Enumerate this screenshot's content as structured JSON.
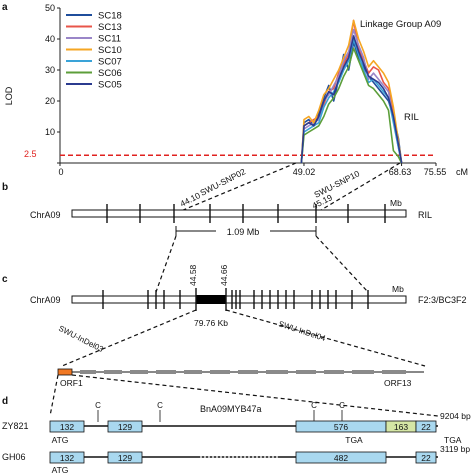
{
  "panels": {
    "a": {
      "letter": "a"
    },
    "b": {
      "letter": "b"
    },
    "c": {
      "letter": "c"
    },
    "d": {
      "letter": "d"
    }
  },
  "panel_a": {
    "group_label": "Linkage Group A09",
    "population_label": "RIL",
    "ylabel": "LOD",
    "threshold_label": "2.5",
    "x_unit": "cM",
    "x_ticks": [
      "0",
      "49.02",
      "68.63",
      "75.55"
    ]
  },
  "panel_b": {
    "chrom": "ChrA09",
    "unit": "Mb",
    "population": "RIL",
    "markers": [
      {
        "name": "SWU-SNP02",
        "pos": "44.10"
      },
      {
        "name": "SWU-SNP10",
        "pos": "45.19"
      }
    ],
    "interval": "1.09 Mb"
  },
  "panel_c": {
    "chrom": "ChrA09",
    "unit": "Mb",
    "population": "F2:3/BC3F2",
    "pos_left": "44.58",
    "pos_right": "44.66",
    "interval": "79.76 Kb",
    "markers": [
      "SWU-InDel03",
      "SWU-InDel04"
    ],
    "orf_first": "ORF1",
    "orf_last": "ORF13"
  },
  "panel_d": {
    "gene": "BnA09MYB47a",
    "c_mark": "C",
    "rows": [
      {
        "name": "ZY821",
        "length": "9204 bp",
        "exons": [
          "132",
          "129",
          "576",
          "163",
          "22"
        ],
        "start_codon": "ATG",
        "stop_codons": [
          "TGA",
          "TGA"
        ]
      },
      {
        "name": "GH06",
        "length": "3119 bp",
        "exons": [
          "132",
          "129",
          "482",
          "22"
        ],
        "start_codon": "ATG"
      }
    ]
  },
  "chart_data": {
    "type": "line",
    "title": "Linkage Group A09",
    "xlabel": "cM",
    "ylabel": "LOD",
    "xlim": [
      0,
      75.55
    ],
    "ylim": [
      0,
      50
    ],
    "yticks": [
      0,
      10,
      20,
      30,
      40,
      50
    ],
    "threshold": 2.5,
    "legend_position": "top-left",
    "x": [
      48.5,
      49.02,
      50,
      51,
      52,
      53,
      54,
      55,
      56,
      57,
      58,
      59,
      60,
      61,
      62,
      63,
      64,
      65,
      66,
      67,
      68,
      68.63
    ],
    "series": [
      {
        "name": "SC18",
        "color": "#1f4e9c",
        "values": [
          0,
          13,
          14,
          12,
          16,
          21,
          25,
          20,
          27,
          35,
          30,
          39,
          34,
          31,
          28,
          26,
          24,
          22,
          20,
          15,
          8,
          0
        ]
      },
      {
        "name": "SC13",
        "color": "#e8554a",
        "values": [
          0,
          12,
          13,
          14,
          15,
          19,
          23,
          24,
          29,
          32,
          35,
          46,
          37,
          33,
          29,
          31,
          30,
          26,
          24,
          16,
          6,
          0
        ]
      },
      {
        "name": "SC11",
        "color": "#9a86c8",
        "values": [
          0,
          11,
          12,
          13,
          14,
          20,
          22,
          25,
          28,
          33,
          36,
          43,
          38,
          34,
          27,
          29,
          27,
          25,
          23,
          14,
          5,
          0
        ]
      },
      {
        "name": "SC10",
        "color": "#f5a623",
        "values": [
          0,
          14,
          15,
          13,
          17,
          22,
          24,
          27,
          30,
          34,
          38,
          46,
          40,
          36,
          31,
          33,
          31,
          29,
          26,
          18,
          7,
          0
        ]
      },
      {
        "name": "SC07",
        "color": "#3aa3d8",
        "values": [
          0,
          10,
          11,
          12,
          13,
          18,
          21,
          23,
          26,
          30,
          33,
          40,
          35,
          30,
          26,
          27,
          25,
          23,
          21,
          13,
          5,
          0
        ]
      },
      {
        "name": "SC06",
        "color": "#5c9e3a",
        "values": [
          0,
          9,
          10,
          11,
          12,
          15,
          19,
          21,
          24,
          28,
          31,
          37,
          33,
          29,
          25,
          24,
          22,
          20,
          17,
          4,
          2,
          0
        ]
      },
      {
        "name": "SC05",
        "color": "#2b3b8f",
        "values": [
          0,
          12,
          13,
          12,
          15,
          20,
          23,
          22,
          27,
          31,
          34,
          41,
          36,
          32,
          28,
          27,
          26,
          24,
          21,
          15,
          6,
          0
        ]
      }
    ]
  }
}
